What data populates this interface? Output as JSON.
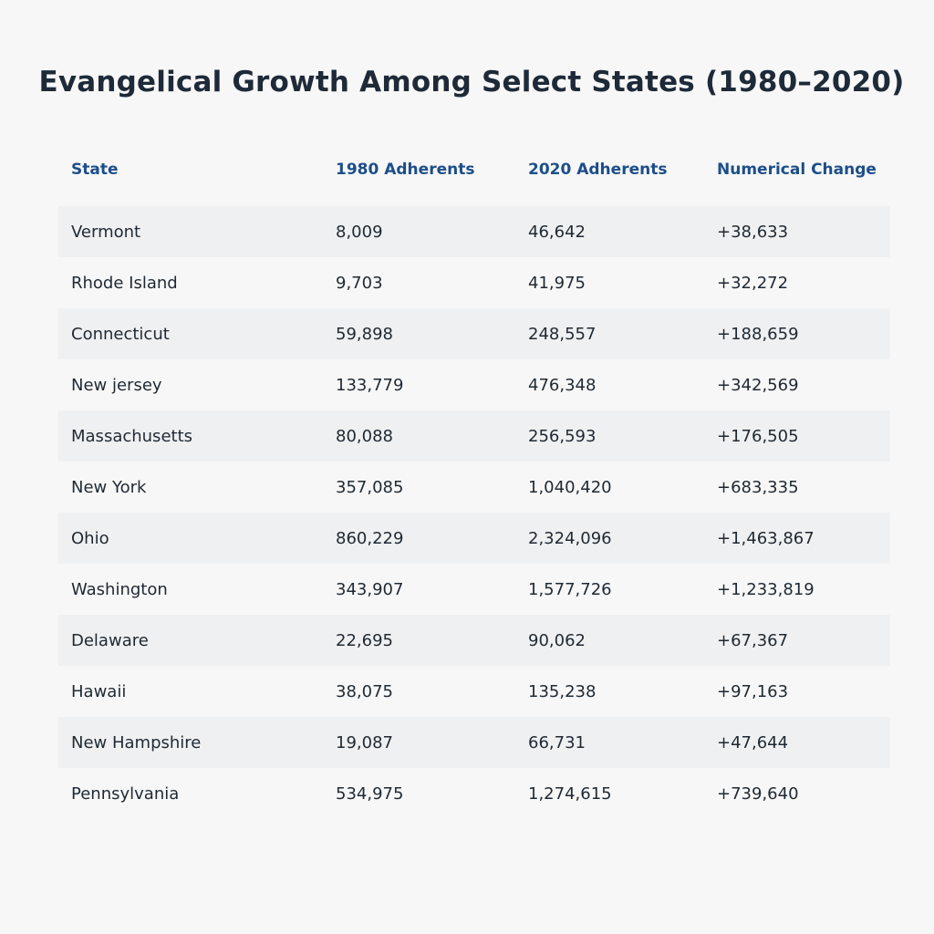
{
  "chart_data": {
    "type": "table",
    "title": "Evangelical Growth Among Select States (1980–2020)",
    "columns": [
      "State",
      "1980 Adherents",
      "2020 Adherents",
      "Numerical Change"
    ],
    "rows": [
      [
        "Vermont",
        "8,009",
        "46,642",
        "+38,633"
      ],
      [
        "Rhode Island",
        "9,703",
        "41,975",
        "+32,272"
      ],
      [
        "Connecticut",
        "59,898",
        "248,557",
        "+188,659"
      ],
      [
        "New jersey",
        "133,779",
        "476,348",
        "+342,569"
      ],
      [
        "Massachusetts",
        "80,088",
        "256,593",
        "+176,505"
      ],
      [
        "New York",
        "357,085",
        "1,040,420",
        "+683,335"
      ],
      [
        "Ohio",
        "860,229",
        "2,324,096",
        "+1,463,867"
      ],
      [
        "Washington",
        "343,907",
        "1,577,726",
        "+1,233,819"
      ],
      [
        "Delaware",
        "22,695",
        "90,062",
        "+67,367"
      ],
      [
        "Hawaii",
        "38,075",
        "135,238",
        "+97,163"
      ],
      [
        "New Hampshire",
        "19,087",
        "66,731",
        "+47,644"
      ],
      [
        "Pennsylvania",
        "534,975",
        "1,274,615",
        "+739,640"
      ]
    ]
  },
  "colors": {
    "background": "#f7f7f7",
    "title": "#1e2a38",
    "header_text": "#1d4e89",
    "body_text": "#1f2933",
    "stripe": "#eff0f1"
  }
}
